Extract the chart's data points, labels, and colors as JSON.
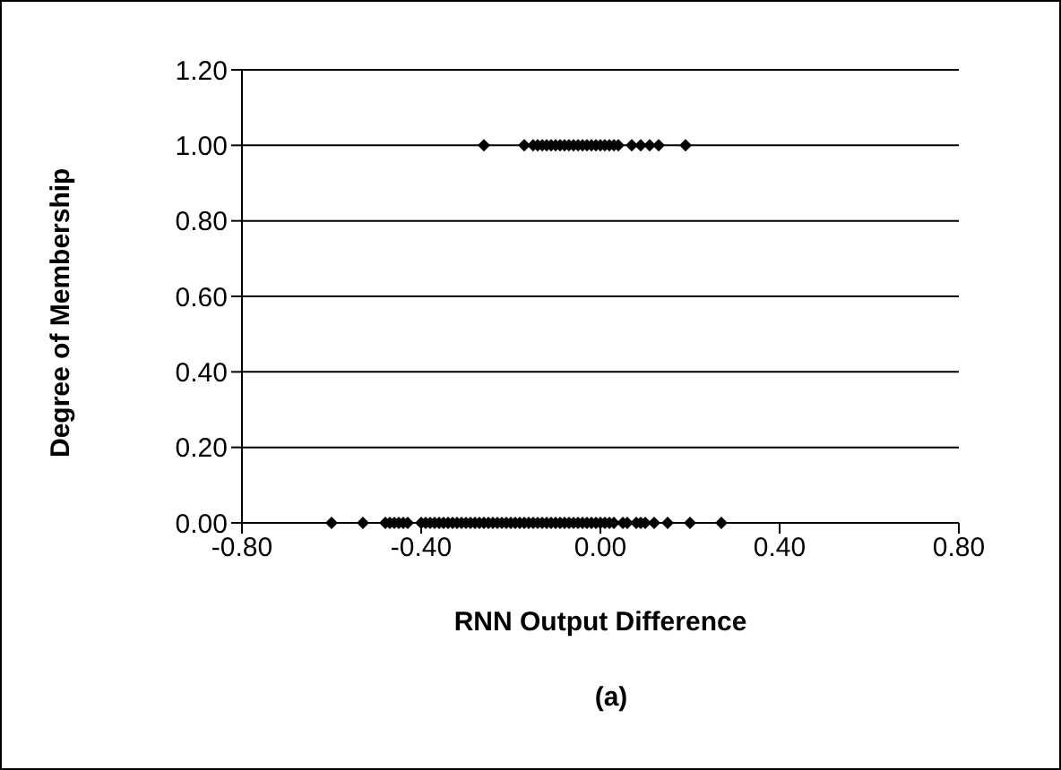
{
  "chart_data": {
    "type": "scatter",
    "xlabel": "RNN Output Difference",
    "ylabel": "Degree of Membership",
    "annotations": [
      "(a)"
    ],
    "x": [
      -0.26,
      -0.17,
      -0.15,
      -0.14,
      -0.13,
      -0.12,
      -0.11,
      -0.1,
      -0.09,
      -0.08,
      -0.07,
      -0.06,
      -0.05,
      -0.04,
      -0.03,
      -0.02,
      -0.01,
      0.0,
      0.01,
      0.02,
      0.03,
      0.04,
      0.07,
      0.09,
      0.11,
      0.13,
      0.19,
      -0.6,
      -0.53,
      -0.48,
      -0.47,
      -0.46,
      -0.45,
      -0.44,
      -0.43,
      -0.4,
      -0.39,
      -0.38,
      -0.37,
      -0.36,
      -0.35,
      -0.34,
      -0.33,
      -0.32,
      -0.31,
      -0.3,
      -0.29,
      -0.28,
      -0.27,
      -0.26,
      -0.25,
      -0.24,
      -0.23,
      -0.22,
      -0.21,
      -0.2,
      -0.19,
      -0.18,
      -0.17,
      -0.16,
      -0.15,
      -0.14,
      -0.13,
      -0.12,
      -0.11,
      -0.1,
      -0.09,
      -0.08,
      -0.07,
      -0.06,
      -0.05,
      -0.04,
      -0.03,
      -0.02,
      -0.01,
      0.0,
      0.01,
      0.02,
      0.03,
      0.05,
      0.06,
      0.08,
      0.09,
      0.1,
      0.12,
      0.15,
      0.2,
      0.27
    ],
    "values": [
      1,
      1,
      1,
      1,
      1,
      1,
      1,
      1,
      1,
      1,
      1,
      1,
      1,
      1,
      1,
      1,
      1,
      1,
      1,
      1,
      1,
      1,
      1,
      1,
      1,
      1,
      1,
      0,
      0,
      0,
      0,
      0,
      0,
      0,
      0,
      0,
      0,
      0,
      0,
      0,
      0,
      0,
      0,
      0,
      0,
      0,
      0,
      0,
      0,
      0,
      0,
      0,
      0,
      0,
      0,
      0,
      0,
      0,
      0,
      0,
      0,
      0,
      0,
      0,
      0,
      0,
      0,
      0,
      0,
      0,
      0,
      0,
      0,
      0,
      0,
      0,
      0,
      0,
      0,
      0,
      0,
      0,
      0,
      0,
      0,
      0,
      0,
      0
    ],
    "color": "#000000",
    "marker": "diamond",
    "xlim": [
      -0.8,
      0.8
    ],
    "xticks": [
      {
        "value": -0.8,
        "label": "-0.80"
      },
      {
        "value": -0.4,
        "label": "-0.40"
      },
      {
        "value": 0,
        "label": "0.00"
      },
      {
        "value": 0.4,
        "label": "0.40"
      },
      {
        "value": 0.8,
        "label": "0.80"
      }
    ],
    "ylim": [
      0,
      1.2
    ],
    "yticks": [
      {
        "value": 0,
        "label": "0.00"
      },
      {
        "value": 0.2,
        "label": "0.20"
      },
      {
        "value": 0.4,
        "label": "0.40"
      },
      {
        "value": 0.6,
        "label": "0.60"
      },
      {
        "value": 0.8,
        "label": "0.80"
      },
      {
        "value": 1,
        "label": "1.00"
      },
      {
        "value": 1.2,
        "label": "1.20"
      }
    ],
    "grid": "y"
  }
}
